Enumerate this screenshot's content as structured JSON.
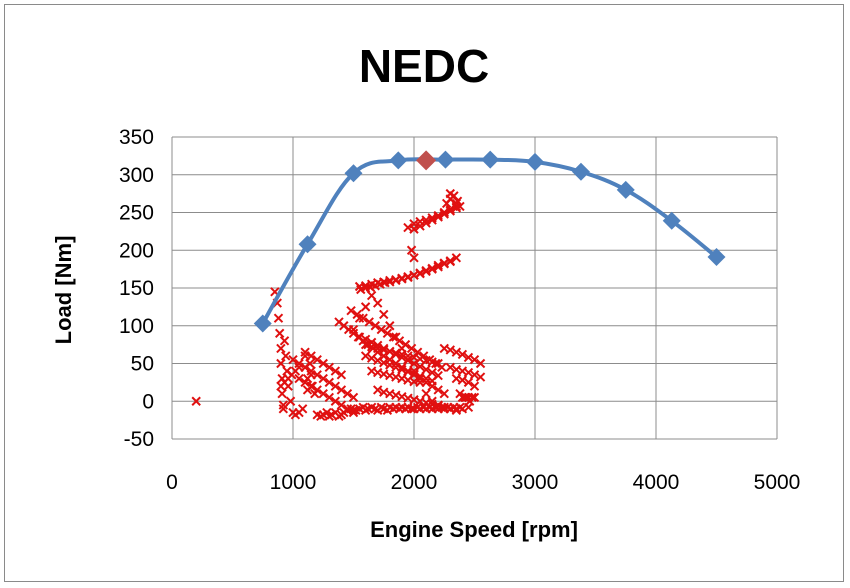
{
  "chart_data": {
    "type": "scatter",
    "title": "NEDC",
    "xlabel": "Engine Speed [rpm]",
    "ylabel": "Load [Nm]",
    "xlim": [
      0,
      5000
    ],
    "ylim": [
      -50,
      350
    ],
    "x_ticks": [
      0,
      1000,
      2000,
      3000,
      4000,
      5000
    ],
    "y_ticks": [
      -50,
      0,
      50,
      100,
      150,
      200,
      250,
      300,
      350
    ],
    "grid": true,
    "legend": "none",
    "colors": {
      "full_load_line": "#4f81bd",
      "highlight_marker": "#c0504d",
      "operating_points": "#e01010",
      "grid": "#8c8c8c"
    },
    "series": [
      {
        "kind": "line-with-diamond-markers",
        "x": [
          750,
          1120,
          1500,
          1870,
          2260,
          2630,
          3000,
          3380,
          3750,
          4130,
          4500
        ],
        "y": [
          103,
          208,
          302,
          319,
          320,
          320,
          317,
          304,
          280,
          239,
          191
        ]
      },
      {
        "kind": "diamond-marker",
        "x": [
          2100
        ],
        "y": [
          319
        ]
      },
      {
        "kind": "x-markers",
        "x": [
          200,
          850,
          870,
          880,
          890,
          900,
          900,
          910,
          910,
          920,
          920,
          930,
          940,
          950,
          960,
          980,
          1000,
          1020,
          1050,
          1080,
          1100,
          1100,
          1120,
          1120,
          1140,
          1150,
          1160,
          1180,
          1200,
          1230,
          1250,
          1280,
          1300,
          1320,
          1350,
          1380,
          1400,
          1420,
          1450,
          1480,
          1500,
          1520,
          1550,
          1580,
          1600,
          1620,
          1650,
          1680,
          1700,
          1730,
          1750,
          1780,
          1800,
          1830,
          1850,
          1880,
          1900,
          1930,
          1950,
          1980,
          2000,
          2030,
          2050,
          2080,
          2100,
          2130,
          2150,
          2180,
          2200,
          2230,
          2250,
          2280,
          2300,
          2330,
          2350,
          2380,
          2400,
          2430,
          2450,
          2480,
          2500,
          1550,
          1600,
          1650,
          1700,
          1750,
          1800,
          1850,
          1900,
          1950,
          2000,
          2050,
          2100,
          2150,
          2200,
          2250,
          2300,
          1560,
          1600,
          1640,
          1680,
          1720,
          1760,
          1800,
          1850,
          1900,
          1950,
          2000,
          2050,
          2100,
          2150,
          2200,
          2250,
          2300,
          2350,
          2000,
          2050,
          2100,
          2150,
          2200,
          2250,
          2300,
          2350,
          1950,
          2000,
          2050,
          2100,
          2150,
          2200,
          2250,
          2300,
          2350,
          2270,
          2300,
          2330,
          2360,
          2380,
          2300,
          2350,
          1380,
          1420,
          1460,
          1500,
          1540,
          1580,
          1620,
          1660,
          1700,
          1750,
          1800,
          1850,
          1900,
          1950,
          2000,
          2050,
          2100,
          2150,
          2200,
          2250,
          1480,
          1530,
          1580,
          1630,
          1680,
          1730,
          1780,
          1830,
          1880,
          1930,
          1980,
          2030,
          2080,
          2130,
          2180,
          2230,
          1550,
          1600,
          1650,
          1700,
          1750,
          1800,
          1850,
          1900,
          1950,
          2000,
          2050,
          2100,
          2150,
          2200,
          1600,
          1650,
          1700,
          1750,
          1800,
          1850,
          1900,
          1950,
          2000,
          2050,
          2100,
          2150,
          1650,
          1700,
          1750,
          1800,
          1850,
          1900,
          1950,
          2000,
          1000,
          1050,
          1100,
          1150,
          1200,
          1250,
          1300,
          1350,
          1400,
          1450,
          1500,
          1050,
          1100,
          1150,
          1200,
          1250,
          1300,
          1350,
          1400,
          1450,
          1500,
          1100,
          1150,
          1200,
          1250,
          1300,
          1350,
          1400,
          2250,
          2300,
          2350,
          2400,
          2450,
          2500,
          2550,
          2300,
          2350,
          2400,
          2450,
          2500,
          2550,
          2350,
          2400,
          2450,
          2500,
          2380,
          2420,
          2460,
          900,
          930,
          960,
          990,
          1020,
          1050,
          1500,
          1550,
          1600,
          1650,
          1700,
          1750,
          1800,
          1850,
          1900,
          1950,
          2000,
          2050,
          2100,
          2150,
          2200,
          2250,
          2300,
          2350,
          2400,
          2450,
          1980,
          2000,
          1600,
          1650,
          1700,
          1750,
          1800,
          1850,
          1900,
          1950,
          2000,
          2050,
          2100,
          2150,
          2200,
          1700,
          1750,
          1800,
          1850,
          1900,
          1950,
          2000,
          2050,
          2100,
          2150,
          2200
        ],
        "y": [
          0,
          145,
          130,
          110,
          90,
          70,
          50,
          30,
          10,
          -5,
          -10,
          80,
          60,
          40,
          20,
          0,
          -15,
          -18,
          -15,
          -10,
          60,
          45,
          30,
          15,
          50,
          35,
          20,
          10,
          -18,
          -20,
          -18,
          -15,
          -20,
          -18,
          -15,
          -20,
          -18,
          -15,
          -12,
          -10,
          -15,
          -12,
          -10,
          -8,
          -12,
          -10,
          -8,
          -10,
          -12,
          -8,
          -10,
          -12,
          -8,
          -10,
          -8,
          -10,
          -8,
          -10,
          -8,
          -10,
          -10,
          -8,
          -10,
          -8,
          -10,
          -8,
          -10,
          -8,
          -10,
          -8,
          -10,
          -8,
          -10,
          -8,
          -10,
          -8,
          5,
          5,
          5,
          5,
          5,
          152,
          153,
          155,
          157,
          158,
          160,
          161,
          163,
          165,
          167,
          169,
          172,
          175,
          178,
          182,
          185,
          148,
          150,
          151,
          153,
          155,
          157,
          158,
          160,
          162,
          164,
          167,
          170,
          173,
          176,
          180,
          183,
          186,
          190,
          235,
          238,
          240,
          243,
          246,
          250,
          254,
          258,
          230,
          228,
          232,
          236,
          240,
          244,
          248,
          252,
          256,
          262,
          268,
          272,
          265,
          258,
          275,
          262,
          105,
          100,
          95,
          90,
          85,
          80,
          75,
          70,
          65,
          60,
          55,
          50,
          45,
          40,
          35,
          30,
          25,
          20,
          15,
          10,
          120,
          115,
          110,
          105,
          100,
          95,
          90,
          85,
          80,
          75,
          70,
          65,
          60,
          55,
          50,
          45,
          85,
          82,
          78,
          74,
          70,
          66,
          62,
          58,
          54,
          50,
          46,
          42,
          38,
          34,
          60,
          57,
          54,
          51,
          48,
          45,
          42,
          39,
          36,
          33,
          30,
          27,
          40,
          38,
          36,
          34,
          32,
          30,
          28,
          26,
          55,
          50,
          45,
          40,
          35,
          30,
          25,
          20,
          15,
          10,
          5,
          30,
          25,
          20,
          15,
          10,
          5,
          0,
          -5,
          -10,
          -12,
          65,
          60,
          55,
          50,
          45,
          40,
          35,
          70,
          68,
          65,
          62,
          58,
          55,
          50,
          45,
          42,
          40,
          38,
          35,
          32,
          30,
          28,
          25,
          20,
          10,
          5,
          0,
          20,
          25,
          30,
          35,
          40,
          45,
          95,
          110,
          125,
          140,
          130,
          115,
          100,
          85,
          70,
          55,
          40,
          25,
          10,
          0,
          -5,
          -8,
          -10,
          -12,
          -10,
          -8,
          200,
          190,
          75,
          72,
          70,
          68,
          66,
          64,
          62,
          60,
          58,
          56,
          54,
          52,
          50,
          15,
          12,
          10,
          8,
          6,
          4,
          2,
          0,
          -2,
          -4,
          -6
        ]
      }
    ]
  }
}
